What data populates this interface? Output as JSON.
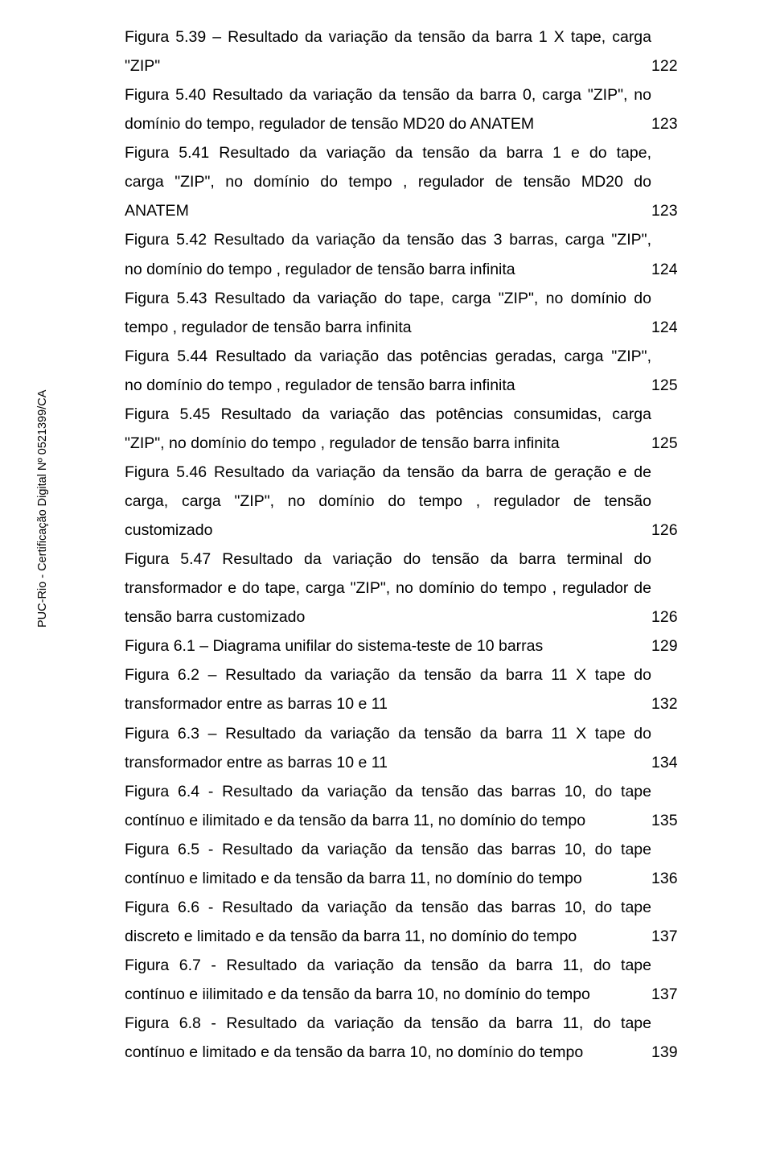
{
  "side_label": "PUC-Rio - Certificação Digital Nº 0521399/CA",
  "entries": [
    {
      "lines": [
        "Figura 5.39 – Resultado da variação da tensão da barra 1 X tape, carga",
        "\"ZIP\""
      ],
      "page": "122"
    },
    {
      "lines": [
        "Figura 5.40 Resultado da variação da tensão da barra 0, carga \"ZIP\", no",
        "domínio do tempo, regulador de tensão MD20 do ANATEM"
      ],
      "page": "123"
    },
    {
      "lines": [
        "Figura 5.41 Resultado da variação da tensão da barra 1 e do tape,",
        "carga \"ZIP\", no domínio do tempo , regulador de tensão MD20 do",
        "ANATEM"
      ],
      "page": "123"
    },
    {
      "lines": [
        "Figura 5.42 Resultado da variação da tensão das 3 barras, carga \"ZIP\",",
        "no domínio do tempo , regulador de tensão barra infinita"
      ],
      "page": "124"
    },
    {
      "lines": [
        "Figura 5.43 Resultado da variação do tape, carga \"ZIP\", no domínio do",
        "tempo , regulador de tensão barra infinita"
      ],
      "page": "124"
    },
    {
      "lines": [
        "Figura 5.44 Resultado da variação das potências geradas, carga \"ZIP\",",
        "no domínio do tempo , regulador de tensão barra infinita"
      ],
      "page": "125"
    },
    {
      "lines": [
        "Figura 5.45 Resultado da variação das potências consumidas, carga",
        "\"ZIP\", no domínio do tempo , regulador de tensão barra infinita"
      ],
      "page": "125"
    },
    {
      "lines": [
        "Figura 5.46 Resultado da variação da tensão da barra de geração e de",
        "carga, carga \"ZIP\", no domínio do tempo , regulador de tensão",
        "customizado"
      ],
      "page": "126"
    },
    {
      "lines": [
        "Figura 5.47 Resultado da variação do tensão da barra terminal do",
        "transformador e do tape, carga \"ZIP\", no domínio do tempo , regulador de",
        "tensão barra customizado"
      ],
      "page": "126"
    },
    {
      "lines": [
        "Figura 6.1 – Diagrama unifilar do sistema-teste de 10 barras"
      ],
      "page": "129"
    },
    {
      "lines": [
        "Figura 6.2 – Resultado da variação da tensão da barra 11 X tape do",
        "transformador entre as barras 10 e 11"
      ],
      "page": "132"
    },
    {
      "lines": [
        "Figura 6.3 – Resultado da variação da tensão da barra 11 X tape do",
        "transformador entre as barras 10 e 11"
      ],
      "page": "134"
    },
    {
      "lines": [
        "Figura 6.4 - Resultado da variação da tensão das barras 10, do tape",
        "contínuo e ilimitado e da tensão da barra 11, no domínio do tempo"
      ],
      "page": "135"
    },
    {
      "lines": [
        "Figura 6.5 - Resultado da variação da tensão das barras 10, do tape",
        "contínuo e limitado e da tensão da barra 11, no domínio do tempo"
      ],
      "page": "136"
    },
    {
      "lines": [
        "Figura 6.6 - Resultado da variação da tensão das barras 10, do tape",
        "discreto e limitado e da tensão da barra 11, no domínio do tempo"
      ],
      "page": "137"
    },
    {
      "lines": [
        "Figura 6.7 - Resultado da variação da tensão da barra 11, do tape",
        "contínuo e iilimitado e da tensão da barra 10, no domínio do tempo"
      ],
      "page": "137"
    },
    {
      "lines": [
        "Figura 6.8 - Resultado da variação da tensão da barra 11, do tape",
        "contínuo e limitado e da tensão da barra 10, no domínio do tempo"
      ],
      "page": "139"
    }
  ]
}
